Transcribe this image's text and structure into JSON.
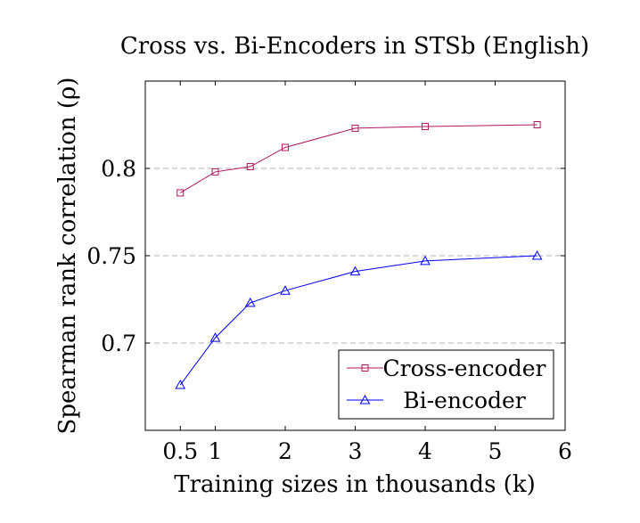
{
  "chart_data": {
    "type": "line",
    "title": "Cross vs. Bi-Encoders in STSb (English)",
    "xlabel": "Training sizes in thousands (k)",
    "ylabel": "Spearman rank correlation (ρ)",
    "xlim": [
      0,
      6
    ],
    "ylim": [
      0.65,
      0.85
    ],
    "x_ticks": [
      0.5,
      1,
      2,
      3,
      4,
      5,
      6
    ],
    "x_tick_labels": [
      "0.5",
      "1",
      "2",
      "3",
      "4",
      "5",
      "6"
    ],
    "y_ticks": [
      0.7,
      0.75,
      0.8
    ],
    "y_tick_labels": [
      "0.7",
      "0.75",
      "0.8"
    ],
    "grid": "horizontal dashed",
    "legend_position": "bottom-right",
    "series": [
      {
        "name": "Cross-encoder",
        "color": "#b0175f",
        "marker": "square",
        "x": [
          0.5,
          1,
          1.5,
          2,
          3,
          4,
          5.6
        ],
        "y": [
          0.786,
          0.798,
          0.801,
          0.812,
          0.823,
          0.824,
          0.825
        ]
      },
      {
        "name": "Bi-encoder",
        "color": "#0000ff",
        "marker": "triangle",
        "x": [
          0.5,
          1,
          1.5,
          2,
          3,
          4,
          5.6
        ],
        "y": [
          0.676,
          0.703,
          0.723,
          0.73,
          0.741,
          0.747,
          0.75
        ]
      }
    ]
  }
}
